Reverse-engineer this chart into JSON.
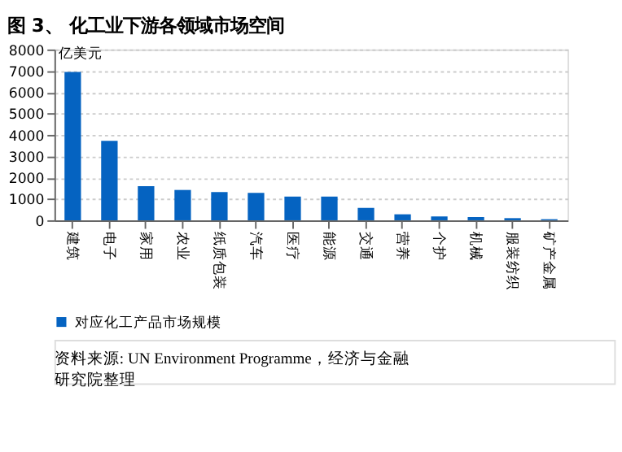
{
  "chart_data": {
    "type": "bar",
    "title": "图 3、 化工业下游各领域市场空间",
    "ylabel": "亿美元",
    "categories": [
      "建筑",
      "电子",
      "家用",
      "农业",
      "纸质包装",
      "汽车",
      "医疗",
      "能源",
      "交通",
      "营养",
      "个护",
      "机械",
      "服装纺织",
      "矿产金属"
    ],
    "series": [
      {
        "name": "对应化工产品市场规模",
        "color": "#0563c1",
        "values": [
          6950,
          3720,
          1600,
          1420,
          1320,
          1280,
          1110,
          1110,
          580,
          280,
          180,
          150,
          100,
          50
        ]
      }
    ],
    "ylim": [
      0,
      8000
    ],
    "yticks": [
      0,
      1000,
      2000,
      3000,
      4000,
      5000,
      6000,
      7000,
      8000
    ],
    "grid": "y",
    "legend": "bottom",
    "annotations": [
      "资料来源: UN Environment Programme，经济与金融研究院整理"
    ]
  }
}
